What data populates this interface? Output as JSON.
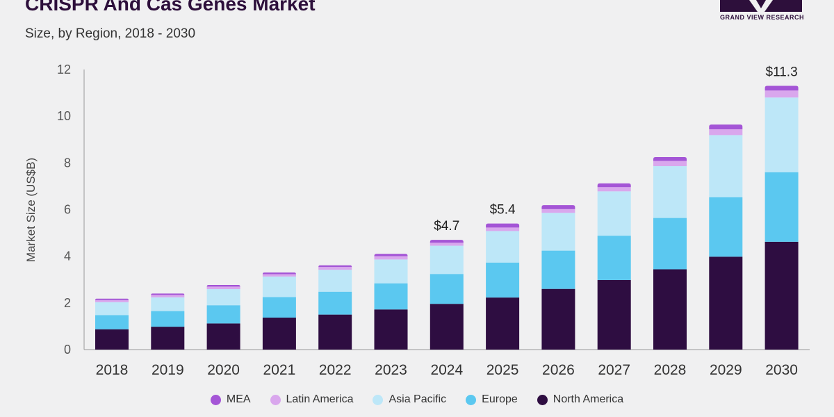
{
  "header": {
    "title": "CRISPR And Cas Genes Market",
    "subtitle": "Size, by Region, 2018 - 2030",
    "logo_text": "GRAND VIEW RESEARCH"
  },
  "chart_data": {
    "type": "bar",
    "stacked": true,
    "title": "CRISPR And Cas Genes Market",
    "subtitle": "Size, by Region, 2018 - 2030",
    "xlabel": "",
    "ylabel": "Market Size (US$B)",
    "ylim": [
      0,
      12
    ],
    "yticks": [
      0,
      2,
      4,
      6,
      8,
      10,
      12
    ],
    "grid": false,
    "legend_position": "bottom",
    "categories": [
      "2018",
      "2019",
      "2020",
      "2021",
      "2022",
      "2023",
      "2024",
      "2025",
      "2026",
      "2027",
      "2028",
      "2029",
      "2030"
    ],
    "series": [
      {
        "name": "North America",
        "color": "#2e0d41",
        "values": [
          0.87,
          0.98,
          1.12,
          1.37,
          1.5,
          1.72,
          1.96,
          2.23,
          2.6,
          2.98,
          3.44,
          3.98,
          4.62
        ]
      },
      {
        "name": "Europe",
        "color": "#5bc8f0",
        "values": [
          0.61,
          0.67,
          0.78,
          0.88,
          0.98,
          1.12,
          1.28,
          1.5,
          1.64,
          1.9,
          2.2,
          2.55,
          2.98
        ]
      },
      {
        "name": "Asia Pacific",
        "color": "#bde7f8",
        "values": [
          0.55,
          0.59,
          0.69,
          0.88,
          0.94,
          1.02,
          1.21,
          1.35,
          1.62,
          1.9,
          2.22,
          2.66,
          3.2
        ]
      },
      {
        "name": "Latin America",
        "color": "#d9a7ed",
        "values": [
          0.09,
          0.1,
          0.11,
          0.1,
          0.12,
          0.14,
          0.13,
          0.15,
          0.16,
          0.18,
          0.22,
          0.25,
          0.3
        ]
      },
      {
        "name": "MEA",
        "color": "#a455d6",
        "values": [
          0.06,
          0.06,
          0.07,
          0.07,
          0.07,
          0.1,
          0.12,
          0.17,
          0.17,
          0.16,
          0.17,
          0.2,
          0.2
        ]
      }
    ],
    "annotations": [
      {
        "category": "2024",
        "label": "$4.7",
        "value": 4.7
      },
      {
        "category": "2025",
        "label": "$5.4",
        "value": 5.4
      },
      {
        "category": "2030",
        "label": "$11.3",
        "value": 11.3
      }
    ],
    "legend_order": [
      "MEA",
      "Latin America",
      "Asia Pacific",
      "Europe",
      "North America"
    ]
  }
}
